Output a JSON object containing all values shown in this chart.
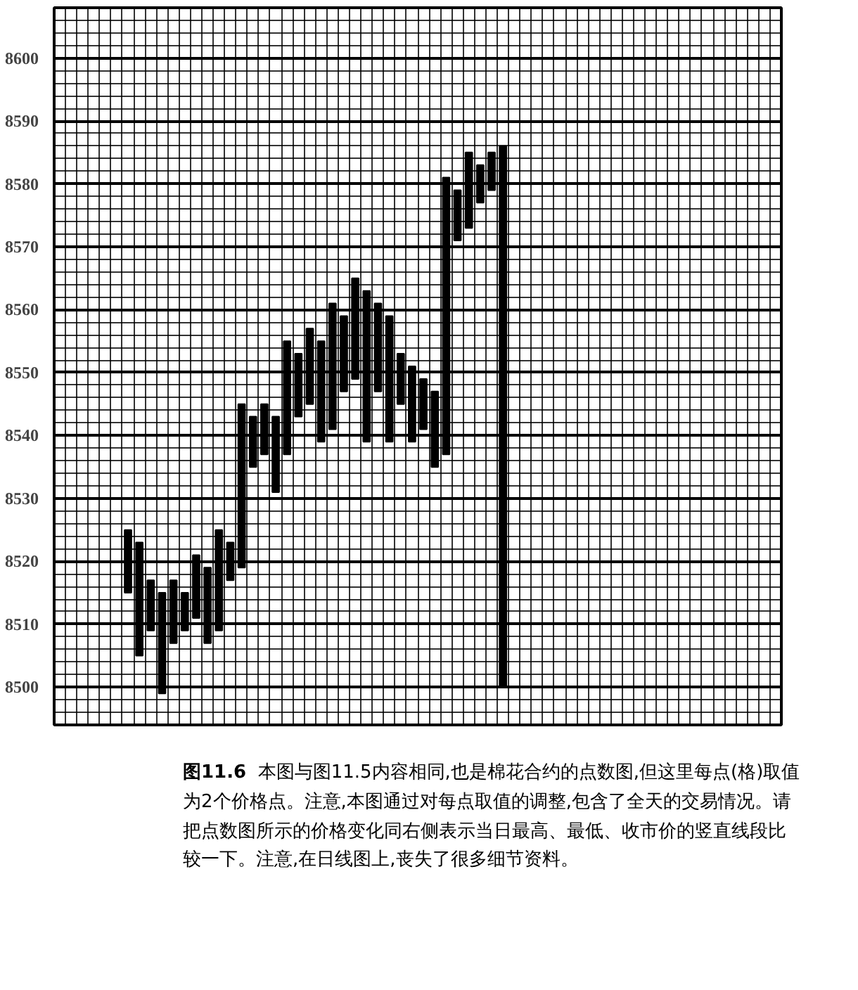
{
  "chart_data": {
    "type": "bar",
    "title": "图11.6",
    "annotations": [
      "本图与图11.5内容相同,也是棉花合约的点数图,但这里每点(格)取值为2个价格点。注意,本图通过对每点取值的调整,包含了全天的交易情况。请把点数图所示的价格变化同右侧表示当日最高、最低、收市价的竖直线段比较一下。注意,在日线图上,丧失了很多细节资料。"
    ],
    "categories": [
      null,
      null,
      null,
      null,
      null,
      null,
      null,
      null,
      null,
      null,
      null,
      null,
      null,
      null,
      null,
      null,
      null,
      null,
      null,
      null,
      null,
      null,
      null,
      null,
      null,
      null,
      null,
      null,
      null,
      null,
      null,
      null,
      null,
      null
    ],
    "ylim": [
      8494,
      8608
    ],
    "yticks": [
      8500,
      8510,
      8520,
      8530,
      8540,
      8550,
      8560,
      8570,
      8580,
      8590,
      8600
    ],
    "grid": true,
    "series": [
      {
        "color": "#000000",
        "base": [
          8515,
          8505,
          8509,
          8499,
          8507,
          8509,
          8511,
          8507,
          8509,
          8517,
          8519,
          8535,
          8537,
          8531,
          8537,
          8543,
          8545,
          8539,
          8541,
          8547,
          8549,
          8539,
          8547,
          8539,
          8545,
          8539,
          8541,
          8535,
          8537,
          8571,
          8573,
          8577,
          8579,
          8500
        ],
        "values": [
          10,
          18,
          8,
          16,
          10,
          6,
          10,
          12,
          16,
          6,
          26,
          8,
          8,
          12,
          18,
          10,
          12,
          16,
          20,
          12,
          16,
          24,
          14,
          20,
          8,
          12,
          8,
          12,
          44,
          8,
          12,
          6,
          6,
          86
        ]
      }
    ]
  }
}
